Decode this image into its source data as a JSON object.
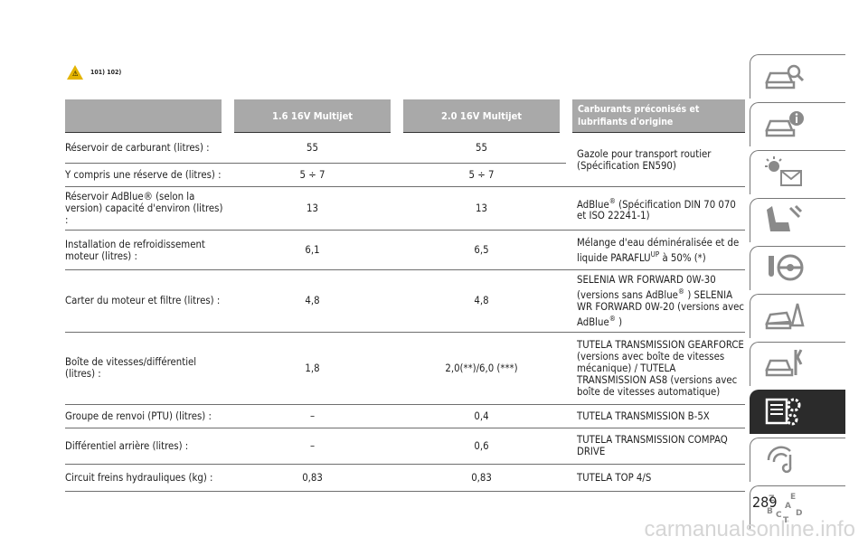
{
  "header": {
    "warning_refs": "101) 102)",
    "warning_symbol": "⚠"
  },
  "table": {
    "columns": [
      "",
      "1.6 16V Multijet",
      "2.0 16V Multijet",
      "Carburants préconisés et lubrifiants d'origine"
    ],
    "rows": [
      {
        "item": "Réservoir de carburant (litres) :",
        "v16": "55",
        "v20": "55"
      },
      {
        "item": "Y compris une réserve de (litres) :",
        "v16": "5 ÷ 7",
        "v20": "5 ÷ 7"
      },
      {
        "item": "Réservoir AdBlue® (selon la version) capacité d'environ (litres) :",
        "v16": "13",
        "v20": "13"
      },
      {
        "item": "Installation de refroidissement moteur (litres) :",
        "v16": "6,1",
        "v20": "6,5"
      },
      {
        "item": "Carter du moteur et filtre (litres) :",
        "v16": "4,8",
        "v20": "4,8"
      },
      {
        "item": "Boîte de vitesses/différentiel (litres) :",
        "v16": "1,8",
        "v20": "2,0(**)/6,0 (***)"
      },
      {
        "item": "Groupe de renvoi (PTU) (litres) :",
        "v16": "–",
        "v20": "0,4"
      },
      {
        "item": "Différentiel arrière (litres) :",
        "v16": "–",
        "v20": "0,6"
      },
      {
        "item": "Circuit freins hydrauliques (kg) :",
        "v16": "0,83",
        "v20": "0,83"
      }
    ],
    "fluids": {
      "fuel": "Gazole pour transport routier (Spécification EN590)",
      "adblue_pre": "AdBlue",
      "adblue_sup": "®",
      "adblue_post": " (Spécification DIN 70 070 et ISO 22241-1)",
      "coolant_pre": "Mélange d'eau déminéralisée et de liquide PARAFLU",
      "coolant_sup": "UP",
      "coolant_post": " à 50% (*)",
      "oil_a": "SELENIA WR FORWARD 0W-30 (versions sans AdBlue",
      "oil_sup1": "®",
      "oil_b": " ) SELENIA WR FORWARD 0W-20 (versions avec AdBlue",
      "oil_sup2": "®",
      "oil_c": " )",
      "gearbox": "TUTELA TRANSMISSION GEARFORCE (versions avec boîte de vitesses mécanique) / TUTELA TRANSMISSION AS8 (versions avec boîte de vitesses automatique)",
      "ptu": "TUTELA TRANSMISSION B-5X",
      "rear_diff": "TUTELA TRANSMISSION COMPAQ DRIVE",
      "brakes": "TUTELA TOP 4/S"
    }
  },
  "sidebar": {
    "tabs": [
      {
        "icon": "car-search-icon",
        "active": false
      },
      {
        "icon": "car-info-icon",
        "active": false
      },
      {
        "icon": "light-message-icon",
        "active": false
      },
      {
        "icon": "seat-wrench-icon",
        "active": false
      },
      {
        "icon": "steering-wheel-icon",
        "active": false
      },
      {
        "icon": "crash-warning-icon",
        "active": false
      },
      {
        "icon": "car-tools-icon",
        "active": false
      },
      {
        "icon": "data-gear-icon",
        "active": true
      },
      {
        "icon": "media-icon",
        "active": false
      },
      {
        "icon": "alphabet-index-icon",
        "active": false
      }
    ],
    "index_letters": [
      "Z",
      "E",
      "B",
      "A",
      "C",
      "D",
      "T"
    ]
  },
  "page_number": "289",
  "watermark": "carmanualsonline.info"
}
